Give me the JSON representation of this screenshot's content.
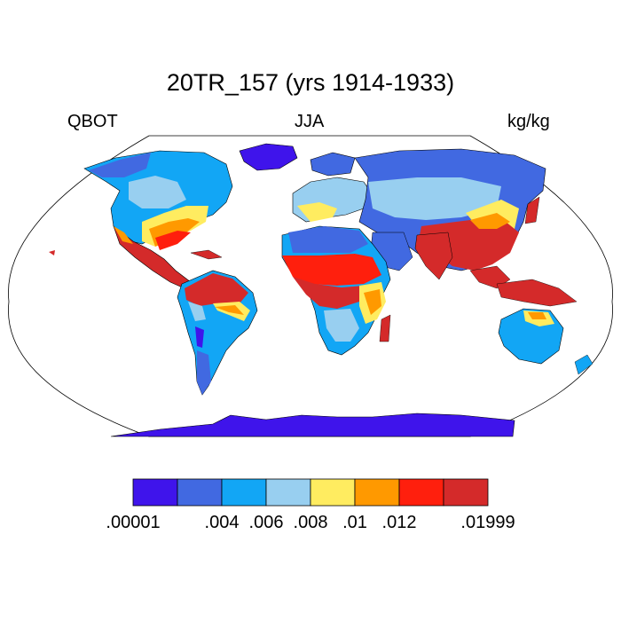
{
  "title": "20TR_157 (yrs 1914-1933)",
  "left_label": "QBOT",
  "center_label": "JJA",
  "right_label": "kg/kg",
  "map": {
    "projection": "Robinson",
    "variable": "QBOT",
    "units": "kg/kg",
    "ocean_color": "#ffffff",
    "outline_color": "#000000"
  },
  "colorbar": {
    "colors": [
      "#3f14eb",
      "#4169e1",
      "#12a6f5",
      "#98cff0",
      "#ffec60",
      "#ff9900",
      "#ff1f0d",
      "#d42a2a"
    ],
    "tick_labels": [
      ".00001",
      ".004",
      ".006",
      ".008",
      ".01",
      ".012",
      ".01999"
    ],
    "tick_boundary_index": [
      0,
      2,
      3,
      4,
      5,
      6,
      8
    ]
  }
}
